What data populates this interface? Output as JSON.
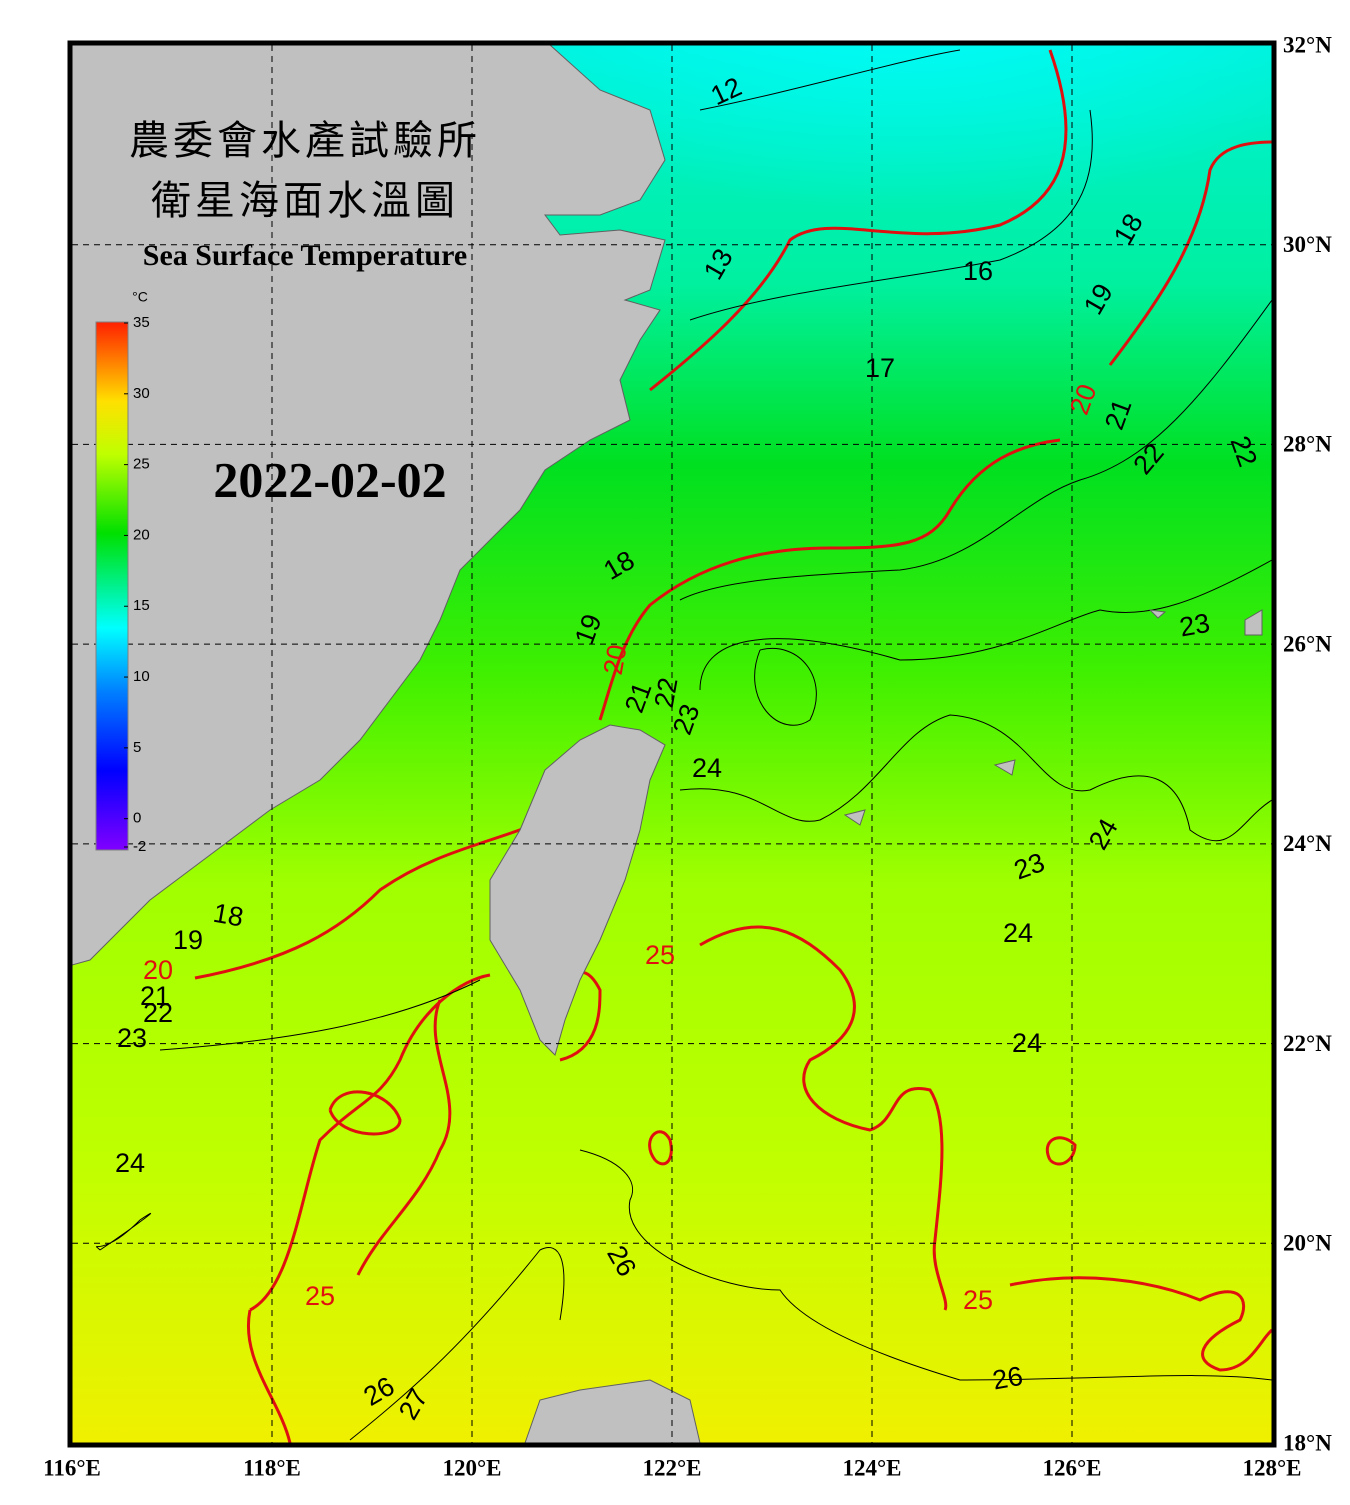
{
  "map": {
    "title_lines": [
      "農委會水產試驗所",
      "衛星海面水溫圖"
    ],
    "subtitle": "Sea Surface Temperature",
    "date": "2022-02-02",
    "lonlim": [
      116,
      128
    ],
    "latlim": [
      18,
      32
    ],
    "lonticks": [
      {
        "value": 116,
        "label": "116°E"
      },
      {
        "value": 118,
        "label": "118°E"
      },
      {
        "value": 120,
        "label": "120°E"
      },
      {
        "value": 122,
        "label": "122°E"
      },
      {
        "value": 124,
        "label": "124°E"
      },
      {
        "value": 126,
        "label": "126°E"
      },
      {
        "value": 128,
        "label": "128°E"
      }
    ],
    "latticks": [
      {
        "value": 18,
        "label": "18°N"
      },
      {
        "value": 20,
        "label": "20°N"
      },
      {
        "value": 22,
        "label": "22°N"
      },
      {
        "value": 24,
        "label": "24°N"
      },
      {
        "value": 26,
        "label": "26°N"
      },
      {
        "value": 28,
        "label": "28°N"
      },
      {
        "value": 30,
        "label": "30°N"
      },
      {
        "value": 32,
        "label": "32°N"
      }
    ],
    "colorbar": {
      "unit": "°C",
      "range": [
        -2,
        35
      ],
      "ticks": [
        35,
        30,
        25,
        20,
        15,
        10,
        5,
        0,
        -2
      ]
    },
    "contour_labels": [
      12,
      13,
      16,
      17,
      18,
      19,
      20,
      21,
      22,
      22,
      18,
      19,
      20,
      21,
      22,
      23,
      24,
      23,
      24,
      23,
      24,
      24,
      25,
      18,
      19,
      20,
      21,
      22,
      23,
      24,
      25,
      26,
      26,
      27,
      25,
      26
    ]
  }
}
